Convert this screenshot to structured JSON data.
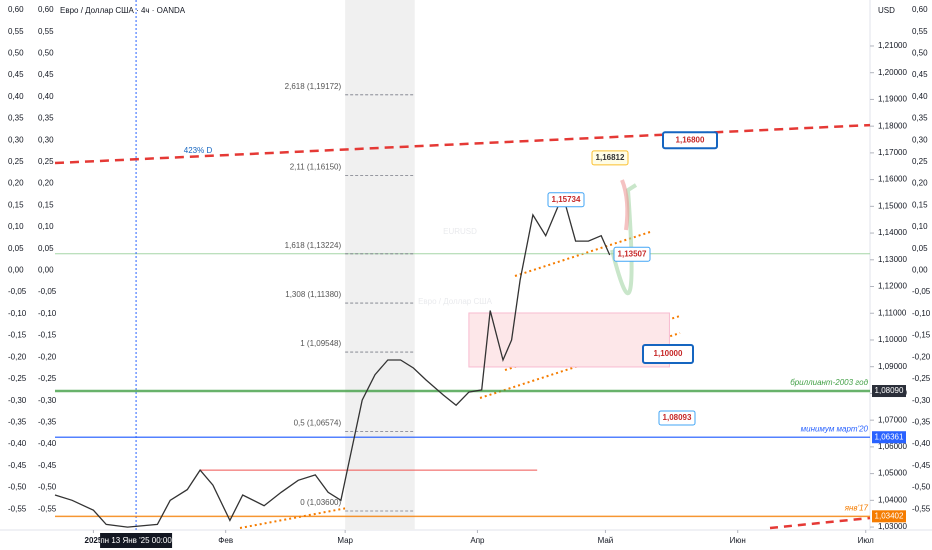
{
  "chart_data": {
    "type": "line",
    "title": "Евро / Доллар США · 4ч · OANDA",
    "watermark": "EURUSD",
    "watermark_sub": "Евро / Доллар США",
    "currency": "USD",
    "crosshair_label": "пн 13 Янв '25  00:00",
    "crosshair_x": 10,
    "series": [
      {
        "name": "EURUSD",
        "color": "#333333",
        "x": [
          -9,
          -5,
          0,
          3,
          8,
          15,
          18,
          22,
          25,
          28,
          32,
          35,
          40,
          44,
          48,
          52,
          55,
          58,
          60,
          63,
          66,
          69,
          72,
          75,
          78,
          82,
          85,
          88,
          91,
          93,
          96,
          98,
          100,
          103,
          106,
          110,
          113,
          116,
          119,
          121
        ],
        "values": [
          1.042,
          1.04,
          1.0363,
          1.031,
          1.03,
          1.031,
          1.04,
          1.044,
          1.0513,
          1.0457,
          1.0325,
          1.042,
          1.038,
          1.043,
          1.0475,
          1.0495,
          1.043,
          1.04,
          1.055,
          1.0775,
          1.087,
          1.0925,
          1.0925,
          1.0895,
          1.085,
          1.0794,
          1.0756,
          1.0805,
          1.0813,
          1.111,
          1.0925,
          1.1,
          1.1224,
          1.1468,
          1.139,
          1.1542,
          1.137,
          1.137,
          1.139,
          1.1318
        ]
      }
    ],
    "xlim": [
      -9,
      182
    ],
    "xticks": [
      {
        "value": 0,
        "label": "2025"
      },
      {
        "value": 31,
        "label": "Фев"
      },
      {
        "value": 59,
        "label": "Мар"
      },
      {
        "value": 90,
        "label": "Апр"
      },
      {
        "value": 120,
        "label": "Май"
      },
      {
        "value": 151,
        "label": "Июн"
      },
      {
        "value": 181,
        "label": "Июл"
      }
    ],
    "ylim": [
      1.0289,
      1.2272
    ],
    "yticks": [
      {
        "value": 1.21,
        "label": "1,21000"
      },
      {
        "value": 1.2,
        "label": "1,20000"
      },
      {
        "value": 1.19,
        "label": "1,19000"
      },
      {
        "value": 1.18,
        "label": "1,18000"
      },
      {
        "value": 1.17,
        "label": "1,17000"
      },
      {
        "value": 1.16,
        "label": "1,16000"
      },
      {
        "value": 1.15,
        "label": "1,15000"
      },
      {
        "value": 1.14,
        "label": "1,14000"
      },
      {
        "value": 1.13,
        "label": "1,13000"
      },
      {
        "value": 1.12,
        "label": "1,12000"
      },
      {
        "value": 1.11,
        "label": "1,11000"
      },
      {
        "value": 1.1,
        "label": "1,10000"
      },
      {
        "value": 1.09,
        "label": "1,09000"
      },
      {
        "value": 1.08,
        "label": "1,08000"
      },
      {
        "value": 1.07,
        "label": "1,07000"
      },
      {
        "value": 1.06,
        "label": "1,06000"
      },
      {
        "value": 1.05,
        "label": "1,05000"
      },
      {
        "value": 1.04,
        "label": "1,04000"
      },
      {
        "value": 1.03,
        "label": "1,03000"
      }
    ],
    "y2lim": [
      -0.598,
      0.623
    ],
    "y2ticks": [
      {
        "value": 0.6,
        "label": "0,60"
      },
      {
        "value": 0.55,
        "label": "0,55"
      },
      {
        "value": 0.5,
        "label": "0,50"
      },
      {
        "value": 0.45,
        "label": "0,45"
      },
      {
        "value": 0.4,
        "label": "0,40"
      },
      {
        "value": 0.35,
        "label": "0,35"
      },
      {
        "value": 0.3,
        "label": "0,30"
      },
      {
        "value": 0.25,
        "label": "0,25"
      },
      {
        "value": 0.2,
        "label": "0,20"
      },
      {
        "value": 0.15,
        "label": "0,15"
      },
      {
        "value": 0.1,
        "label": "0,10"
      },
      {
        "value": 0.05,
        "label": "0,05"
      },
      {
        "value": 0,
        "label": "0,00"
      },
      {
        "value": -0.05,
        "label": "-0,05"
      },
      {
        "value": -0.1,
        "label": "-0,10"
      },
      {
        "value": -0.15,
        "label": "-0,15"
      },
      {
        "value": -0.2,
        "label": "-0,20"
      },
      {
        "value": -0.25,
        "label": "-0,25"
      },
      {
        "value": -0.3,
        "label": "-0,30"
      },
      {
        "value": -0.35,
        "label": "-0,35"
      },
      {
        "value": -0.4,
        "label": "-0,40"
      },
      {
        "value": -0.45,
        "label": "-0,45"
      },
      {
        "value": -0.5,
        "label": "-0,50"
      },
      {
        "value": -0.55,
        "label": "-0,55"
      }
    ],
    "fib": {
      "x": [
        59,
        75.3
      ],
      "levels": [
        {
          "label": "2,618 (1,19172)",
          "value": 1.19172
        },
        {
          "label": "2,11 (1,16150)",
          "value": 1.1615
        },
        {
          "label": "1,618 (1,13224)",
          "value": 1.13224
        },
        {
          "label": "1,308 (1,11380)",
          "value": 1.1138
        },
        {
          "label": "1 (1,09548)",
          "value": 1.09548
        },
        {
          "label": "0,5 (1,06574)",
          "value": 1.06574
        },
        {
          "label": "0 (1,03600)",
          "value": 1.036
        }
      ]
    },
    "levels": [
      {
        "name": "бриллиант-2003 год",
        "value": 1.0809,
        "value_label": "1,08090",
        "color": "#43a047"
      },
      {
        "name": "минимум март'20",
        "value": 1.06361,
        "value_label": "1,06361",
        "color": "#2962ff"
      },
      {
        "name": "янв'17",
        "value": 1.03402,
        "value_label": "1,03402",
        "color": "#f57c00"
      }
    ],
    "resistance_line": {
      "value": 1.0513,
      "x": [
        25,
        104
      ],
      "color": "#ef5350"
    },
    "trendline": {
      "label": "423% D",
      "values": [
        1.1662,
        1.1804
      ],
      "color": "#e53935"
    },
    "zone": {
      "values": [
        1.0899,
        1.1101
      ],
      "x": [
        88,
        135
      ]
    },
    "annotations": [
      {
        "value": 1.168,
        "label": "1,16800"
      },
      {
        "value": 1.16812,
        "label": "1,16812"
      },
      {
        "value": 1.15734,
        "label": "1,15734"
      },
      {
        "value": 1.13507,
        "label": "1,13507"
      },
      {
        "value": 1.1,
        "label": "1,10000"
      },
      {
        "value": 1.08093,
        "label": "1,08093"
      }
    ]
  }
}
